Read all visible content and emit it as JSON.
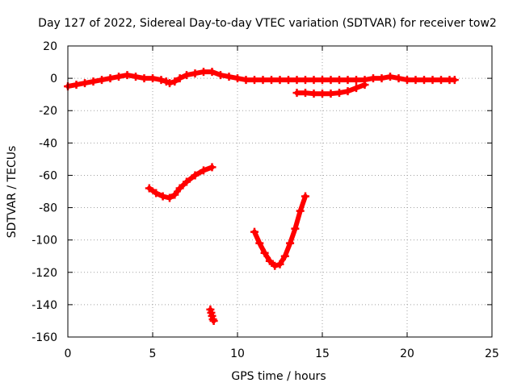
{
  "chart_data": {
    "type": "scatter",
    "title": "Day 127 of 2022, Sidereal Day-to-day VTEC variation (SDTVAR) for receiver tow2",
    "xlabel": "GPS time / hours",
    "ylabel": "SDTVAR / TECUs",
    "xlim": [
      0,
      25
    ],
    "ylim": [
      -160,
      20
    ],
    "xticks": [
      0,
      5,
      10,
      15,
      20,
      25
    ],
    "yticks": [
      -160,
      -140,
      -120,
      -100,
      -80,
      -60,
      -40,
      -20,
      0,
      20
    ],
    "grid": true,
    "legend": "none",
    "colors": {
      "series": "#ff0000",
      "grid": "#a0a0a0",
      "axes": "#000000"
    },
    "series": [
      {
        "name": "main-band",
        "x": [
          0.0,
          0.5,
          1.0,
          1.5,
          2.0,
          2.5,
          3.0,
          3.5,
          4.0,
          4.5,
          5.0,
          5.5,
          5.8,
          6.0,
          6.3,
          6.6,
          7.0,
          7.5,
          8.0,
          8.5,
          9.0,
          9.5,
          10.0,
          10.5,
          11.0,
          11.5,
          12.0,
          12.5,
          13.0,
          13.5,
          14.0,
          14.5,
          15.0,
          15.5,
          16.0,
          16.5,
          17.0,
          17.5,
          18.0,
          18.5,
          19.0,
          19.5,
          20.0,
          20.5,
          21.0,
          21.5,
          22.0,
          22.5,
          22.8
        ],
        "y": [
          -5,
          -4,
          -3,
          -2,
          -1,
          0,
          1,
          2,
          1,
          0,
          0,
          -1,
          -2,
          -3,
          -2,
          0,
          2,
          3,
          4,
          4,
          2,
          1,
          0,
          -1,
          -1,
          -1,
          -1,
          -1,
          -1,
          -1,
          -1,
          -1,
          -1,
          -1,
          -1,
          -1,
          -1,
          -1,
          0,
          0,
          1,
          0,
          -1,
          -1,
          -1,
          -1,
          -1,
          -1,
          -1
        ]
      },
      {
        "name": "lower-short-arc",
        "x": [
          13.5,
          14.0,
          14.5,
          15.0,
          15.5,
          16.0,
          16.5,
          17.0,
          17.5
        ],
        "y": [
          -9,
          -9,
          -9.5,
          -9.5,
          -9.5,
          -9,
          -8,
          -6,
          -4
        ]
      },
      {
        "name": "arc-5to8h",
        "x": [
          4.8,
          5.2,
          5.6,
          6.0,
          6.3,
          6.6,
          7.0,
          7.5,
          8.0,
          8.5
        ],
        "y": [
          -68,
          -71,
          -73,
          -74,
          -72,
          -68,
          -64,
          -60,
          -57,
          -55
        ]
      },
      {
        "name": "short-segment-8h",
        "x": [
          8.4,
          8.45,
          8.5,
          8.55,
          8.6
        ],
        "y": [
          -143,
          -145,
          -147,
          -149,
          -150
        ]
      },
      {
        "name": "u-arc-11to14h",
        "x": [
          11.0,
          11.3,
          11.6,
          11.9,
          12.2,
          12.5,
          12.8,
          13.1,
          13.4,
          13.7,
          14.0
        ],
        "y": [
          -95,
          -102,
          -108,
          -113,
          -116,
          -115,
          -110,
          -102,
          -93,
          -82,
          -73
        ]
      }
    ]
  }
}
